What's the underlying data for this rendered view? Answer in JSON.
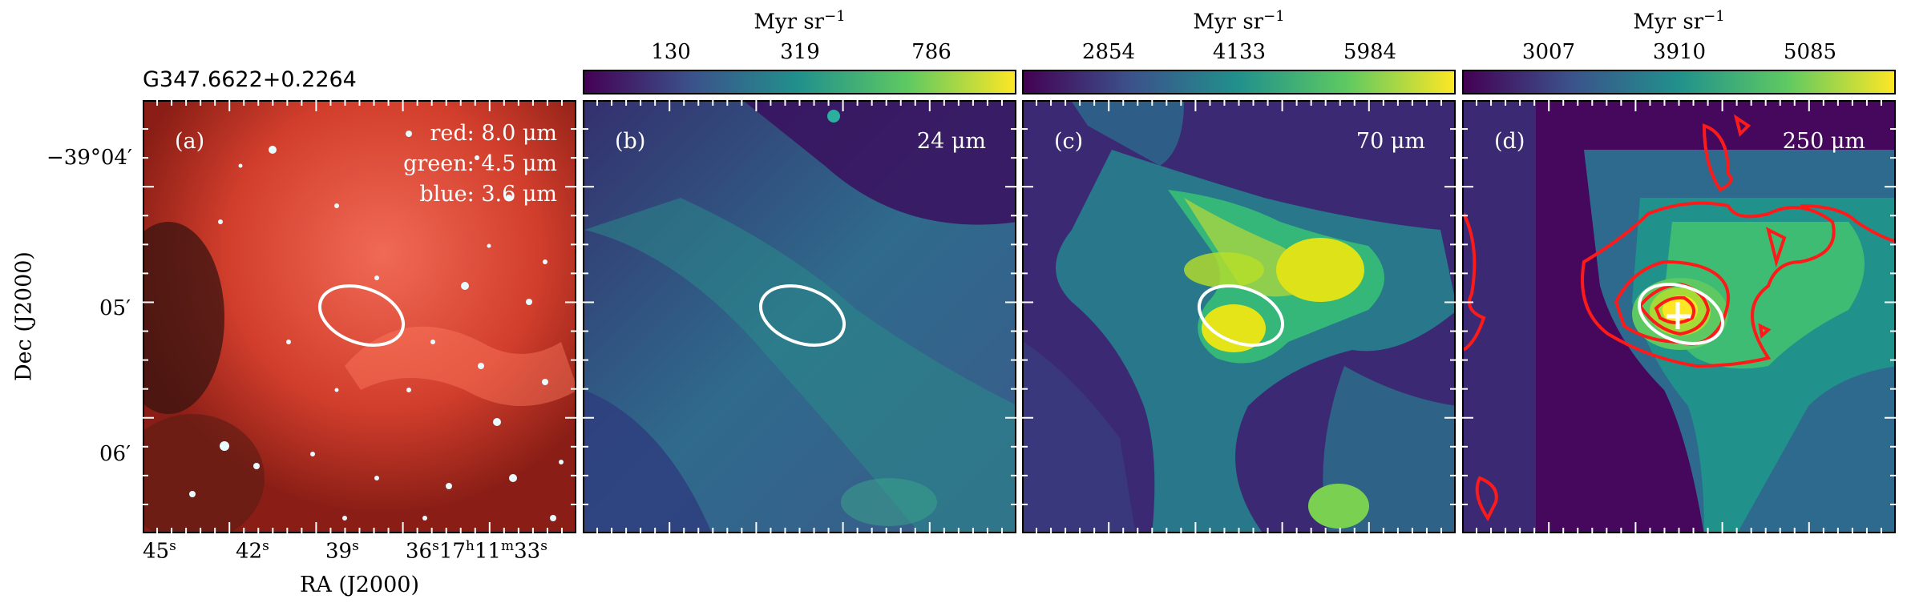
{
  "figure": {
    "source_title": "G347.6622+0.2264",
    "xlabel": "RA (J2000)",
    "ylabel": "Dec (J2000)",
    "ra_ticks": [
      {
        "base": "45",
        "sup": "s"
      },
      {
        "base": "42",
        "sup": "s"
      },
      {
        "base": "39",
        "sup": "s"
      },
      {
        "base": "36",
        "sup": "s"
      },
      {
        "base": "17",
        "sup": "h",
        "base2": "11",
        "sup2": "m",
        "base3": "33",
        "sup3": "s"
      }
    ],
    "dec_ticks": [
      "−39°04′",
      "05′",
      "06′"
    ]
  },
  "panels": [
    {
      "id": "a",
      "label": "(a)",
      "lines": [
        "red: 8.0 μm",
        "green: 4.5 μm",
        "blue: 3.6 μm"
      ]
    },
    {
      "id": "b",
      "label": "(b)",
      "band": "24 μm",
      "colorbar": {
        "title": "Myr sr",
        "exp": "−1",
        "ticks": [
          "130",
          "319",
          "786"
        ]
      }
    },
    {
      "id": "c",
      "label": "(c)",
      "band": "70 μm",
      "colorbar": {
        "title": "Myr sr",
        "exp": "−1",
        "ticks": [
          "2854",
          "4133",
          "5984"
        ]
      }
    },
    {
      "id": "d",
      "label": "(d)",
      "band": "250 μm",
      "colorbar": {
        "title": "Myr sr",
        "exp": "−1",
        "ticks": [
          "3007",
          "3910",
          "5085"
        ]
      }
    }
  ],
  "colors": {
    "viridis_low": "#440154",
    "viridis_mid": "#21918c",
    "viridis_high": "#fde725",
    "contour": "#ff1a1a",
    "ellipse": "#ffffff",
    "ir_red": "#d43a2a"
  }
}
